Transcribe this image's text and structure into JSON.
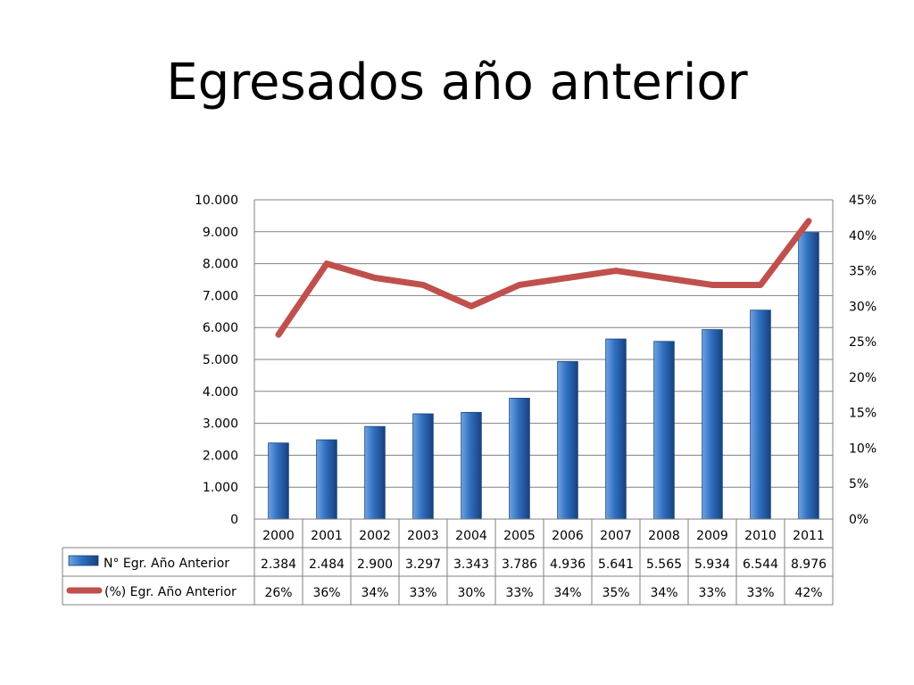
{
  "slide": {
    "title": "Egresados año anterior"
  },
  "colors": {
    "bar_top": "#6fa3e0",
    "bar_mid": "#2f6fc0",
    "bar_dark": "#17427e",
    "line": "#c0504d",
    "grid": "#808080"
  },
  "chart_data": {
    "type": "bar",
    "categories": [
      "2000",
      "2001",
      "2002",
      "2003",
      "2004",
      "2005",
      "2006",
      "2007",
      "2008",
      "2009",
      "2010",
      "2011"
    ],
    "series": [
      {
        "name": "N° Egr. Año Anterior",
        "chart": "bar",
        "axis": "left",
        "values": [
          2384,
          2484,
          2900,
          3297,
          3343,
          3786,
          4936,
          5641,
          5565,
          5934,
          6544,
          8976
        ],
        "labels": [
          "2.384",
          "2.484",
          "2.900",
          "3.297",
          "3.343",
          "3.786",
          "4.936",
          "5.641",
          "5.565",
          "5.934",
          "6.544",
          "8.976"
        ]
      },
      {
        "name": "(%) Egr. Año Anterior",
        "chart": "line",
        "axis": "right",
        "values": [
          26,
          36,
          34,
          33,
          30,
          33,
          34,
          35,
          34,
          33,
          33,
          42
        ],
        "labels": [
          "26%",
          "36%",
          "34%",
          "33%",
          "30%",
          "33%",
          "34%",
          "35%",
          "34%",
          "33%",
          "33%",
          "42%"
        ]
      }
    ],
    "left_axis": {
      "ylim": [
        0,
        10000
      ],
      "tick_labels": [
        "0",
        "1.000",
        "2.000",
        "3.000",
        "4.000",
        "5.000",
        "6.000",
        "7.000",
        "8.000",
        "9.000",
        "10.000"
      ]
    },
    "right_axis": {
      "ylim": [
        0,
        45
      ],
      "tick_labels": [
        "0%",
        "5%",
        "10%",
        "15%",
        "20%",
        "25%",
        "30%",
        "35%",
        "40%",
        "45%"
      ]
    },
    "grid": true,
    "legend": "data-table-below"
  }
}
